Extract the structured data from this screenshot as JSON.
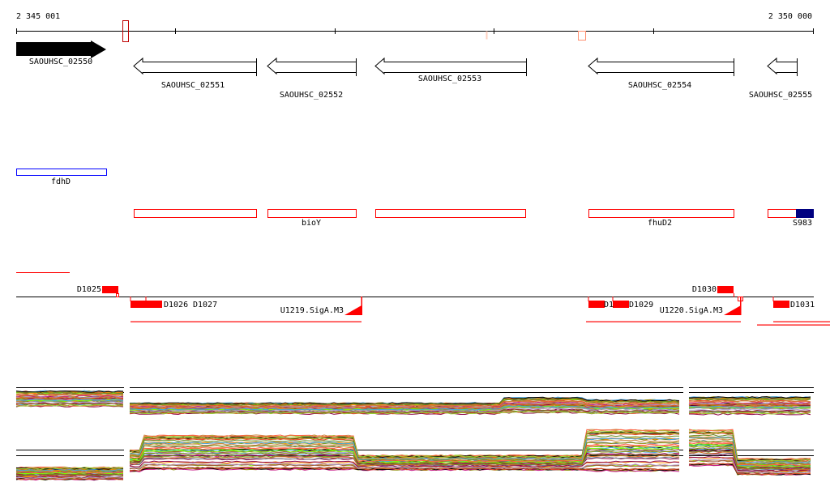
{
  "ruler": {
    "start_label": "2 345 001",
    "end_label": "2 350 000"
  },
  "genes": [
    {
      "name": "SAOUHSC_02550",
      "strand": "+"
    },
    {
      "name": "SAOUHSC_02551",
      "strand": "-"
    },
    {
      "name": "SAOUHSC_02552",
      "strand": "-"
    },
    {
      "name": "SAOUHSC_02553",
      "strand": "-"
    },
    {
      "name": "SAOUHSC_02554",
      "strand": "-"
    },
    {
      "name": "SAOUHSC_02555",
      "strand": "-"
    }
  ],
  "annotations": {
    "fdhD": "fdhD",
    "bioY": "bioY",
    "fhuD2": "fhuD2",
    "S983": "S983"
  },
  "features": {
    "d1025": "D1025",
    "d1026": "D1026",
    "d1027": "D1027",
    "u1219": "U1219.SigA.M3",
    "d1028": "D1",
    "d1029": "D1029",
    "u1220": "U1220.SigA.M3",
    "d1030": "D1030",
    "d1031": "D1031"
  },
  "colors": {
    "feature": "#ff0000",
    "fdhD": "#0000ff",
    "s983": "#000080"
  }
}
